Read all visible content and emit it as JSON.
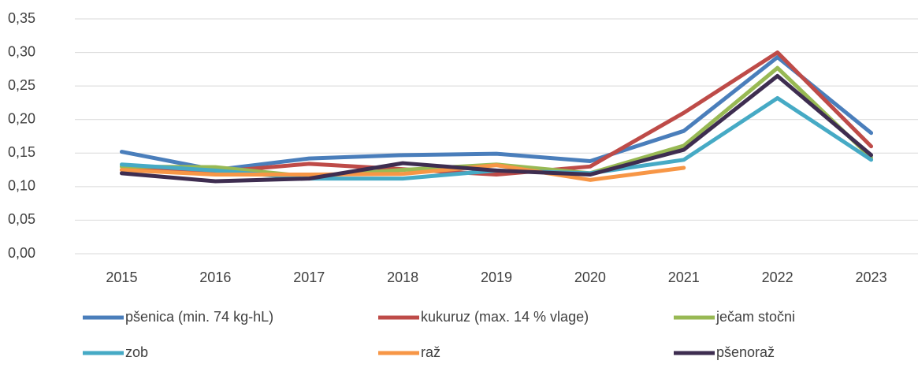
{
  "chart_data": {
    "type": "line",
    "categories": [
      "2015",
      "2016",
      "2017",
      "2018",
      "2019",
      "2020",
      "2021",
      "2022",
      "2023"
    ],
    "series": [
      {
        "name": "pšenica (min. 74 kg-hL)",
        "color": "#4a7ebb",
        "values": [
          0.152,
          0.125,
          0.142,
          0.147,
          0.149,
          0.138,
          0.183,
          0.293,
          0.18
        ]
      },
      {
        "name": "kukuruz (max. 14 % vlage)",
        "color": "#be4b48",
        "values": [
          0.125,
          0.122,
          0.134,
          0.126,
          0.118,
          0.13,
          0.21,
          0.3,
          0.16
        ]
      },
      {
        "name": "ječam stočni",
        "color": "#98b954",
        "values": [
          0.13,
          0.129,
          0.115,
          0.125,
          0.133,
          0.12,
          0.161,
          0.277,
          0.143
        ]
      },
      {
        "name": "zob",
        "color": "#46aac5",
        "values": [
          0.133,
          0.124,
          0.112,
          0.112,
          0.124,
          0.12,
          0.14,
          0.232,
          0.14
        ]
      },
      {
        "name": "raž",
        "color": "#f79646",
        "values": [
          0.125,
          0.118,
          0.118,
          0.119,
          0.132,
          0.11,
          0.128,
          null,
          null
        ]
      },
      {
        "name": "pšenoraž",
        "color": "#3e2d50",
        "values": [
          0.12,
          0.108,
          0.112,
          0.135,
          0.124,
          0.118,
          0.155,
          0.265,
          0.147
        ]
      }
    ],
    "ylim": [
      0,
      0.35
    ],
    "yticks": [
      {
        "value": 0,
        "label": "0,00"
      },
      {
        "value": 0.05,
        "label": "0,05"
      },
      {
        "value": 0.1,
        "label": "0,10"
      },
      {
        "value": 0.15,
        "label": "0,15"
      },
      {
        "value": 0.2,
        "label": "0,20"
      },
      {
        "value": 0.25,
        "label": "0,25"
      },
      {
        "value": 0.3,
        "label": "0,30"
      },
      {
        "value": 0.35,
        "label": "0,35"
      }
    ],
    "grid": true,
    "legend": "bottom"
  }
}
